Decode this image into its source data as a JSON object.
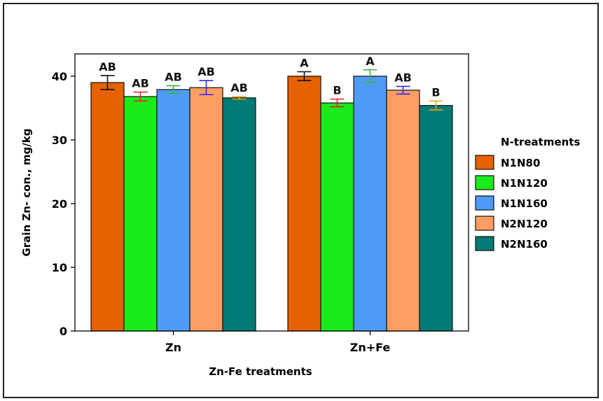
{
  "chart_data": {
    "type": "bar",
    "xlabel": "Zn-Fe treatments",
    "ylabel": "Grain Zn- con., mg/kg",
    "ylim": [
      0,
      43.5
    ],
    "yticks": [
      0,
      10,
      20,
      30,
      40
    ],
    "categories": [
      "Zn",
      "Zn+Fe"
    ],
    "legend_title": "N-treatments",
    "legend_position": "right",
    "grid": false,
    "series": [
      {
        "name": "N1N80",
        "color": "#E66100",
        "values": [
          39.0,
          40.0
        ],
        "errors": [
          1.1,
          0.7
        ],
        "error_color": "#111111",
        "labels": [
          "AB",
          "A"
        ]
      },
      {
        "name": "N1N120",
        "color": "#1BEA1B",
        "values": [
          36.8,
          35.8
        ],
        "errors": [
          0.7,
          0.6
        ],
        "error_color": "#E0202A",
        "labels": [
          "AB",
          "B"
        ]
      },
      {
        "name": "N1N160",
        "color": "#4D9BF7",
        "values": [
          37.9,
          40.0
        ],
        "errors": [
          0.6,
          1.0
        ],
        "error_color": "#3CB043",
        "labels": [
          "AB",
          "A"
        ]
      },
      {
        "name": "N2N120",
        "color": "#FF9E63",
        "values": [
          38.2,
          37.8
        ],
        "errors": [
          1.1,
          0.6
        ],
        "error_color": "#2B2BEF",
        "labels": [
          "AB",
          "AB"
        ]
      },
      {
        "name": "N2N160",
        "color": "#007A74",
        "values": [
          36.6,
          35.4
        ],
        "errors": [
          0.2,
          0.7
        ],
        "error_color": "#E8A317",
        "labels": [
          "AB",
          "B"
        ]
      }
    ]
  }
}
